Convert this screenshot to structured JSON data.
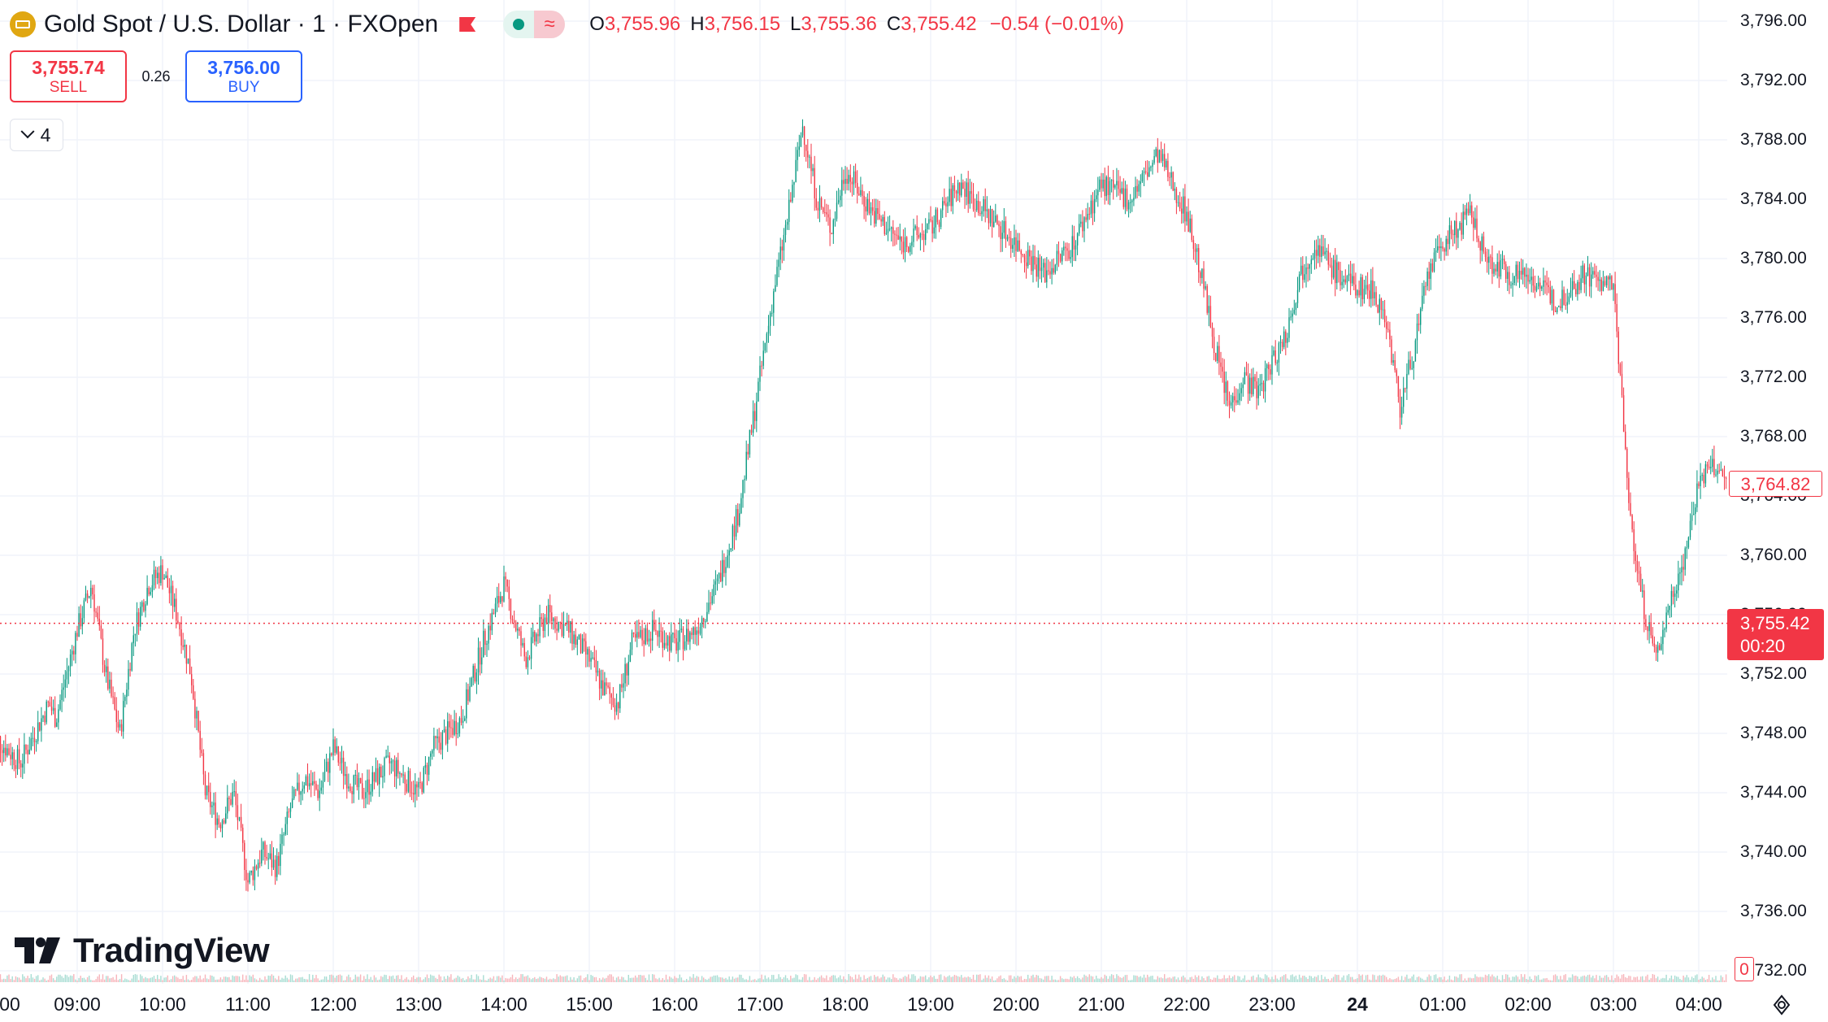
{
  "header": {
    "symbol_title": "Gold Spot / U.S. Dollar · 1 · FXOpen",
    "ohlc": [
      {
        "key": "O",
        "value": "3,755.96"
      },
      {
        "key": "H",
        "value": "3,756.15"
      },
      {
        "key": "L",
        "value": "3,755.36"
      },
      {
        "key": "C",
        "value": "3,755.42"
      }
    ],
    "change": "−0.54 (−0.01%)"
  },
  "trade": {
    "sell_price": "3,755.74",
    "sell_label": "SELL",
    "spread": "0.26",
    "buy_price": "3,756.00",
    "buy_label": "BUY"
  },
  "indicators_count": "4",
  "logo_text": "TradingView",
  "price_axis": {
    "labels": [
      "3,796.00",
      "3,792.00",
      "3,788.00",
      "3,784.00",
      "3,780.00",
      "3,776.00",
      "3,772.00",
      "3,768.00",
      "3,764.00",
      "3,760.00",
      "3,756.00",
      "3,752.00",
      "3,748.00",
      "3,744.00",
      "3,740.00",
      "3,736.00",
      "3,732.00"
    ],
    "high_marker": "3,764.82",
    "last_price": "3,755.42",
    "countdown": "00:20",
    "volume_marker": "0"
  },
  "time_axis": {
    "labels": [
      {
        "text": "00",
        "bold": false
      },
      {
        "text": "09:00",
        "bold": false
      },
      {
        "text": "10:00",
        "bold": false
      },
      {
        "text": "11:00",
        "bold": false
      },
      {
        "text": "12:00",
        "bold": false
      },
      {
        "text": "13:00",
        "bold": false
      },
      {
        "text": "14:00",
        "bold": false
      },
      {
        "text": "15:00",
        "bold": false
      },
      {
        "text": "16:00",
        "bold": false
      },
      {
        "text": "17:00",
        "bold": false
      },
      {
        "text": "18:00",
        "bold": false
      },
      {
        "text": "19:00",
        "bold": false
      },
      {
        "text": "20:00",
        "bold": false
      },
      {
        "text": "21:00",
        "bold": false
      },
      {
        "text": "22:00",
        "bold": false
      },
      {
        "text": "23:00",
        "bold": false
      },
      {
        "text": "24",
        "bold": true
      },
      {
        "text": "01:00",
        "bold": false
      },
      {
        "text": "02:00",
        "bold": false
      },
      {
        "text": "03:00",
        "bold": false
      },
      {
        "text": "04:00",
        "bold": false
      }
    ]
  },
  "colors": {
    "up": "#089981",
    "down": "#f23645",
    "grid": "#f0f3fa",
    "accent_blue": "#2962ff"
  },
  "chart_data": {
    "type": "candlestick",
    "ylim": [
      3732,
      3796
    ],
    "series": [
      {
        "points": [
          [
            "08:00",
            3748
          ],
          [
            "08:20",
            3746
          ],
          [
            "08:40",
            3750
          ],
          [
            "08:45",
            3749
          ],
          [
            "09:00",
            3755
          ],
          [
            "09:10",
            3758
          ],
          [
            "09:20",
            3752
          ],
          [
            "09:30",
            3748
          ],
          [
            "09:40",
            3755
          ],
          [
            "09:50",
            3758
          ],
          [
            "10:00",
            3759
          ],
          [
            "10:10",
            3756
          ],
          [
            "10:20",
            3752
          ],
          [
            "10:30",
            3744
          ],
          [
            "10:40",
            3742
          ],
          [
            "10:50",
            3744
          ],
          [
            "11:00",
            3738
          ],
          [
            "11:10",
            3740
          ],
          [
            "11:20",
            3739
          ],
          [
            "11:30",
            3743
          ],
          [
            "11:40",
            3745
          ],
          [
            "11:50",
            3744
          ],
          [
            "12:00",
            3747
          ],
          [
            "12:10",
            3745
          ],
          [
            "12:20",
            3744
          ],
          [
            "12:40",
            3746
          ],
          [
            "13:00",
            3744
          ],
          [
            "13:10",
            3747
          ],
          [
            "13:20",
            3748
          ],
          [
            "13:30",
            3749
          ],
          [
            "13:45",
            3754
          ],
          [
            "14:00",
            3758
          ],
          [
            "14:15",
            3753
          ],
          [
            "14:30",
            3756
          ],
          [
            "14:45",
            3755
          ],
          [
            "15:00",
            3753
          ],
          [
            "15:10",
            3751
          ],
          [
            "15:20",
            3750
          ],
          [
            "15:30",
            3754
          ],
          [
            "15:45",
            3755
          ],
          [
            "16:00",
            3754
          ],
          [
            "16:15",
            3755
          ],
          [
            "16:30",
            3758
          ],
          [
            "16:45",
            3763
          ],
          [
            "17:00",
            3772
          ],
          [
            "17:10",
            3778
          ],
          [
            "17:20",
            3783
          ],
          [
            "17:30",
            3789
          ],
          [
            "17:40",
            3784
          ],
          [
            "17:50",
            3782
          ],
          [
            "18:00",
            3786
          ],
          [
            "18:20",
            3783
          ],
          [
            "18:40",
            3781
          ],
          [
            "19:00",
            3782
          ],
          [
            "19:20",
            3785
          ],
          [
            "19:40",
            3783
          ],
          [
            "20:00",
            3781
          ],
          [
            "20:20",
            3779
          ],
          [
            "20:40",
            3781
          ],
          [
            "21:00",
            3785
          ],
          [
            "21:20",
            3784
          ],
          [
            "21:40",
            3787
          ],
          [
            "22:00",
            3783
          ],
          [
            "22:10",
            3779
          ],
          [
            "22:20",
            3774
          ],
          [
            "22:30",
            3770
          ],
          [
            "22:40",
            3772
          ],
          [
            "22:50",
            3771
          ],
          [
            "23:00",
            3773
          ],
          [
            "23:10",
            3775
          ],
          [
            "23:20",
            3779
          ],
          [
            "23:30",
            3781
          ],
          [
            "23:45",
            3779
          ],
          [
            "24",
            3778
          ],
          [
            "00:10",
            3778
          ],
          [
            "00:20",
            3776
          ],
          [
            "00:30",
            3770
          ],
          [
            "00:40",
            3774
          ],
          [
            "00:50",
            3779
          ],
          [
            "01:00",
            3781
          ],
          [
            "01:20",
            3783
          ],
          [
            "01:30",
            3780
          ],
          [
            "01:45",
            3779
          ],
          [
            "02:00",
            3779
          ],
          [
            "02:20",
            3777
          ],
          [
            "02:40",
            3779
          ],
          [
            "03:00",
            3778
          ],
          [
            "03:05",
            3772
          ],
          [
            "03:10",
            3764
          ],
          [
            "03:20",
            3757
          ],
          [
            "03:30",
            3753
          ],
          [
            "03:40",
            3757
          ],
          [
            "03:50",
            3760
          ],
          [
            "04:00",
            3765
          ],
          [
            "04:10",
            3766
          ],
          [
            "04:20",
            3764.8
          ]
        ]
      }
    ]
  }
}
